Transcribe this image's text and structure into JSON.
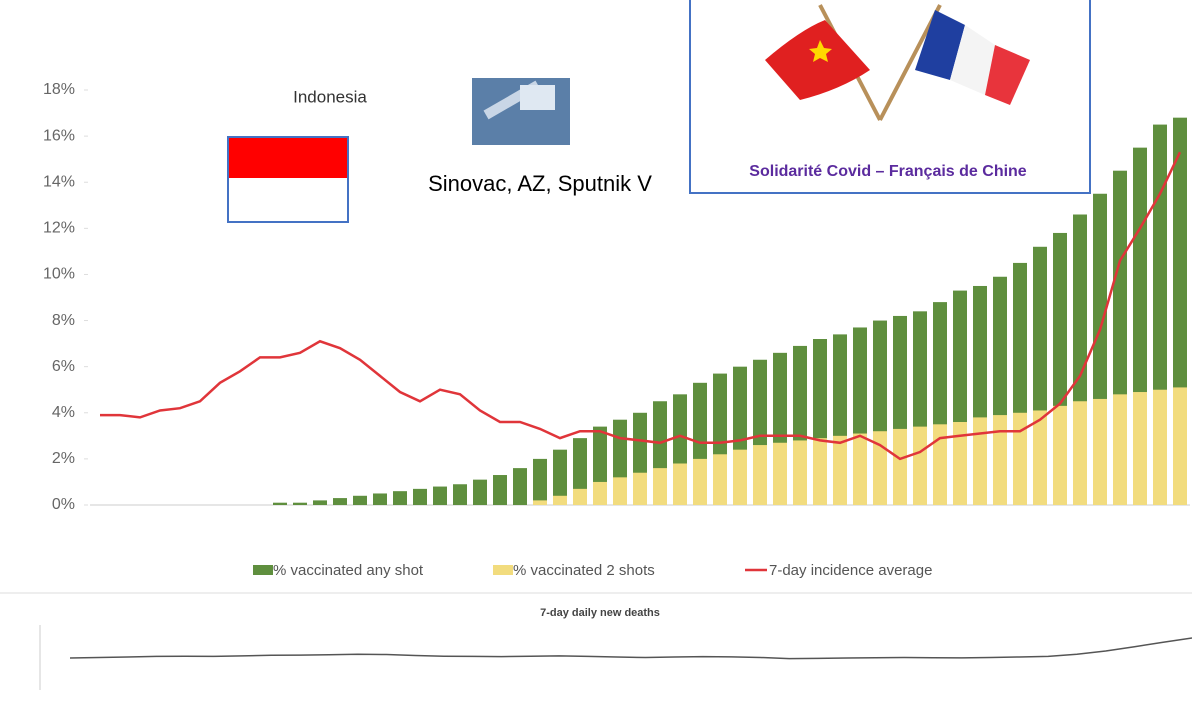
{
  "chart_data": [
    {
      "type": "combo",
      "annotations": [
        "Indonesia",
        "Sinovac, AZ, Sputnik V",
        "Solidarité Covid – Français de Chine"
      ],
      "categories": [
        null,
        null,
        null,
        null,
        null,
        null,
        null,
        null,
        null,
        null,
        null,
        null,
        null,
        null,
        null,
        null,
        null,
        null,
        null,
        null,
        null,
        null,
        null,
        null,
        null,
        null,
        null,
        null,
        null,
        null,
        null,
        null,
        null,
        null,
        null,
        null,
        null,
        null,
        null,
        null,
        null,
        null,
        null,
        null,
        null,
        null,
        null,
        null,
        null,
        null,
        null,
        null,
        null,
        null,
        null
      ],
      "series": [
        {
          "name": "% vaccinated any shot",
          "type": "bar",
          "color": "#5f8f3e",
          "values": [
            0,
            0,
            0,
            0,
            0,
            0,
            0,
            0,
            0,
            0.1,
            0.1,
            0.2,
            0.3,
            0.4,
            0.5,
            0.6,
            0.7,
            0.8,
            0.9,
            1.1,
            1.3,
            1.6,
            2.0,
            2.4,
            2.9,
            3.4,
            3.7,
            4.0,
            4.5,
            4.8,
            5.3,
            5.7,
            6.0,
            6.3,
            6.6,
            6.9,
            7.2,
            7.4,
            7.7,
            8.0,
            8.2,
            8.4,
            8.8,
            9.3,
            9.5,
            9.9,
            10.5,
            11.2,
            11.8,
            12.6,
            13.5,
            14.5,
            15.5,
            16.5,
            16.8
          ]
        },
        {
          "name": "% vaccinated 2 shots",
          "type": "bar",
          "color": "#f2dc7e",
          "values": [
            0,
            0,
            0,
            0,
            0,
            0,
            0,
            0,
            0,
            0,
            0,
            0,
            0,
            0,
            0,
            0,
            0,
            0,
            0,
            0,
            0,
            0,
            0.2,
            0.4,
            0.7,
            1.0,
            1.2,
            1.4,
            1.6,
            1.8,
            2.0,
            2.2,
            2.4,
            2.6,
            2.7,
            2.8,
            2.9,
            3.0,
            3.1,
            3.2,
            3.3,
            3.4,
            3.5,
            3.6,
            3.8,
            3.9,
            4.0,
            4.1,
            4.3,
            4.5,
            4.6,
            4.8,
            4.9,
            5.0,
            5.1
          ]
        },
        {
          "name": "7-day incidence average",
          "type": "line",
          "color": "#e0353a",
          "values": [
            3.9,
            3.9,
            3.8,
            4.1,
            4.2,
            4.5,
            5.3,
            5.8,
            6.4,
            6.4,
            6.6,
            7.1,
            6.8,
            6.3,
            5.6,
            4.9,
            4.5,
            5.0,
            4.8,
            4.1,
            3.6,
            3.6,
            3.3,
            2.9,
            3.2,
            3.2,
            2.9,
            2.8,
            2.7,
            3.0,
            2.7,
            2.7,
            2.8,
            3.0,
            3.0,
            3.0,
            2.8,
            2.7,
            3.0,
            2.6,
            2.0,
            2.3,
            2.9,
            3.0,
            3.1,
            3.2,
            3.2,
            3.7,
            4.4,
            5.6,
            7.6,
            10.6,
            12.0,
            13.5,
            15.3
          ]
        }
      ],
      "ylim": [
        0,
        18
      ],
      "yticks": [
        {
          "value": 0,
          "label": "0%"
        },
        {
          "value": 2,
          "label": "2%"
        },
        {
          "value": 4,
          "label": "4%"
        },
        {
          "value": 6,
          "label": "6%"
        },
        {
          "value": 8,
          "label": "8%"
        },
        {
          "value": 10,
          "label": "10%"
        },
        {
          "value": 12,
          "label": "12%"
        },
        {
          "value": 14,
          "label": "14%"
        },
        {
          "value": 16,
          "label": "16%"
        },
        {
          "value": 18,
          "label": "18%"
        }
      ],
      "grid": false
    },
    {
      "type": "line",
      "title": "7-day daily new deaths",
      "color": "#555555",
      "categories": [
        null,
        null,
        null,
        null,
        null,
        null,
        null,
        null,
        null,
        null,
        null,
        null,
        null,
        null,
        null,
        null,
        null,
        null,
        null,
        null,
        null,
        null,
        null,
        null,
        null,
        null,
        null,
        null,
        null,
        null,
        null,
        null,
        null,
        null,
        null,
        null,
        null,
        null,
        null,
        null
      ],
      "values": [
        295,
        300,
        305,
        310,
        312,
        310,
        315,
        320,
        322,
        325,
        330,
        328,
        318,
        312,
        310,
        308,
        312,
        315,
        310,
        305,
        300,
        305,
        308,
        306,
        300,
        290,
        292,
        295,
        298,
        300,
        298,
        296,
        300,
        305,
        310,
        330,
        360,
        400,
        440,
        480
      ],
      "ylim": [
        0,
        600
      ]
    }
  ]
}
